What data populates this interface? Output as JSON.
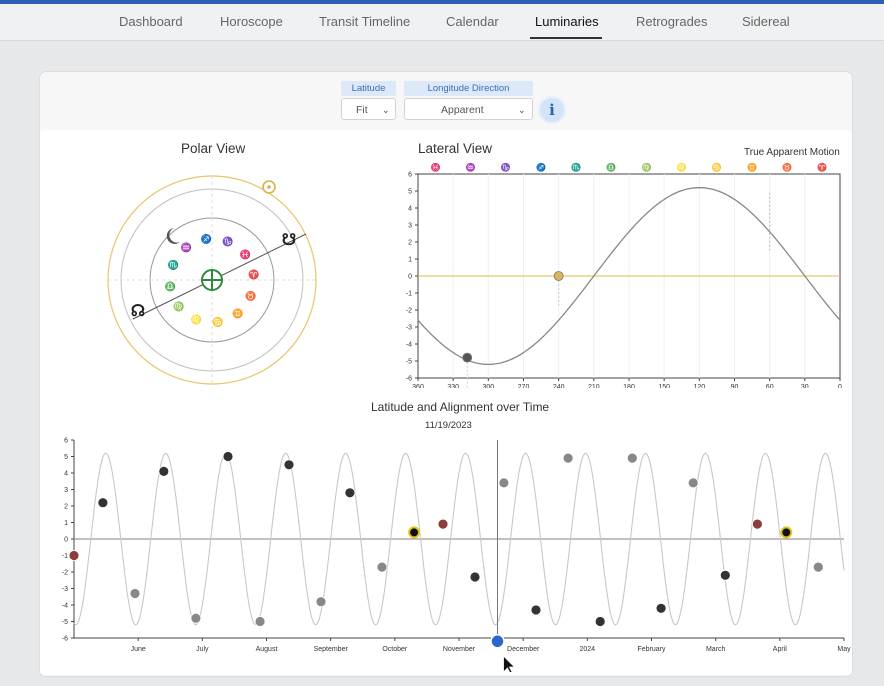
{
  "nav": {
    "tabs": [
      "Dashboard",
      "Horoscope",
      "Transit Timeline",
      "Calendar",
      "Luminaries",
      "Retrogrades",
      "Sidereal"
    ],
    "active": "Luminaries"
  },
  "controls": {
    "latitude": {
      "label": "Latitude",
      "value": "Fit"
    },
    "longitude_direction": {
      "label": "Longitude Direction",
      "value": "Apparent"
    },
    "info_glyph": "i"
  },
  "polar_view": {
    "title": "Polar View",
    "icons": [
      "sun-icon",
      "moon-icon",
      "north-node-icon",
      "south-node-icon",
      "earth-icon"
    ],
    "zodiac_glyphs": [
      "♒",
      "♐",
      "♑",
      "♓",
      "♈",
      "♉",
      "♊",
      "♋",
      "♌",
      "♍",
      "♎",
      "♏"
    ],
    "glyph_colors": {
      "air": "#c9a93a",
      "fire": "#c44a4a",
      "earth": "#7b7b7b",
      "water": "#3b6fd0"
    },
    "earth_color": "#2f8a3b",
    "node_color": "#222222"
  },
  "lateral_view": {
    "title": "Lateral View",
    "subtitle": "True Apparent Motion",
    "zodiac_header": [
      "♓",
      "♒",
      "♑",
      "♐",
      "♏",
      "♎",
      "♍",
      "♌",
      "♋",
      "♊",
      "♉",
      "♈"
    ],
    "chart_data": {
      "type": "line",
      "x_axis_reversed": true,
      "xlim": [
        360,
        0
      ],
      "ylim": [
        -6,
        6
      ],
      "x_ticks": [
        360,
        330,
        300,
        270,
        240,
        210,
        180,
        150,
        120,
        90,
        60,
        30,
        0
      ],
      "y_ticks": [
        6,
        5,
        4,
        3,
        2,
        1,
        0,
        -1,
        -2,
        -3,
        -4,
        -5,
        -6
      ],
      "series": [
        {
          "x": [
            360,
            330,
            300,
            270,
            240,
            210,
            180,
            150,
            120,
            90,
            60,
            30,
            0
          ],
          "y": [
            -2.2,
            -4.6,
            -5.2,
            -4.0,
            -1.8,
            0.8,
            3.2,
            4.8,
            5.2,
            4.6,
            2.8,
            0.6,
            -2.2
          ]
        }
      ],
      "markers": [
        {
          "x": 318,
          "y": -4.8,
          "color": "#555555"
        },
        {
          "x": 240,
          "y": 0,
          "color": "#d9b65a"
        }
      ]
    }
  },
  "timeline": {
    "title": "Latitude and Alignment over Time",
    "date": "11/19/2023",
    "chart_data": {
      "type": "line",
      "ylim": [
        -6,
        6
      ],
      "y_ticks": [
        6,
        5,
        4,
        3,
        2,
        1,
        0,
        -1,
        -2,
        -3,
        -4,
        -5,
        -6
      ],
      "x_labels": [
        "June",
        "July",
        "August",
        "September",
        "October",
        "November",
        "December",
        "2024",
        "February",
        "March",
        "April",
        "May"
      ],
      "months_range": [
        0,
        12
      ],
      "cursor_month": 6.6,
      "series": [
        {
          "amplitude": 5.2,
          "cycles_per_month": 1.07,
          "phase_offset": -0.28
        }
      ],
      "moon_markers": [
        {
          "x": 0,
          "y": -1.0,
          "color": "#8e3d3d"
        },
        {
          "x": 0.45,
          "y": 2.2,
          "color": "#333333"
        },
        {
          "x": 0.95,
          "y": -3.3,
          "color": "#888888"
        },
        {
          "x": 1.4,
          "y": 4.1,
          "color": "#333333"
        },
        {
          "x": 1.9,
          "y": -4.8,
          "color": "#888888"
        },
        {
          "x": 2.4,
          "y": 5.0,
          "color": "#333333"
        },
        {
          "x": 2.9,
          "y": -5.0,
          "color": "#888888"
        },
        {
          "x": 3.35,
          "y": 4.5,
          "color": "#333333"
        },
        {
          "x": 3.85,
          "y": -3.8,
          "color": "#888888"
        },
        {
          "x": 4.3,
          "y": 2.8,
          "color": "#333333"
        },
        {
          "x": 4.8,
          "y": -1.7,
          "color": "#888888"
        },
        {
          "x": 5.3,
          "y": 0.4,
          "color": "#111111",
          "ring": "#e2c41e"
        },
        {
          "x": 5.75,
          "y": 0.9,
          "color": "#8e3d3d"
        },
        {
          "x": 6.25,
          "y": -2.3,
          "color": "#333333"
        },
        {
          "x": 6.7,
          "y": 3.4,
          "color": "#888888"
        },
        {
          "x": 7.2,
          "y": -4.3,
          "color": "#333333"
        },
        {
          "x": 7.7,
          "y": 4.9,
          "color": "#888888"
        },
        {
          "x": 8.2,
          "y": -5.0,
          "color": "#333333"
        },
        {
          "x": 8.7,
          "y": 4.9,
          "color": "#888888"
        },
        {
          "x": 9.15,
          "y": -4.2,
          "color": "#333333"
        },
        {
          "x": 9.65,
          "y": 3.4,
          "color": "#888888"
        },
        {
          "x": 10.15,
          "y": -2.2,
          "color": "#333333"
        },
        {
          "x": 10.65,
          "y": 0.9,
          "color": "#8e3d3d"
        },
        {
          "x": 11.1,
          "y": 0.4,
          "color": "#111111",
          "ring": "#e2c41e"
        },
        {
          "x": 11.6,
          "y": -1.7,
          "color": "#888888"
        }
      ],
      "cursor_marker": {
        "x": 6.6,
        "y": -6.2,
        "color": "#2a67c9"
      }
    }
  }
}
